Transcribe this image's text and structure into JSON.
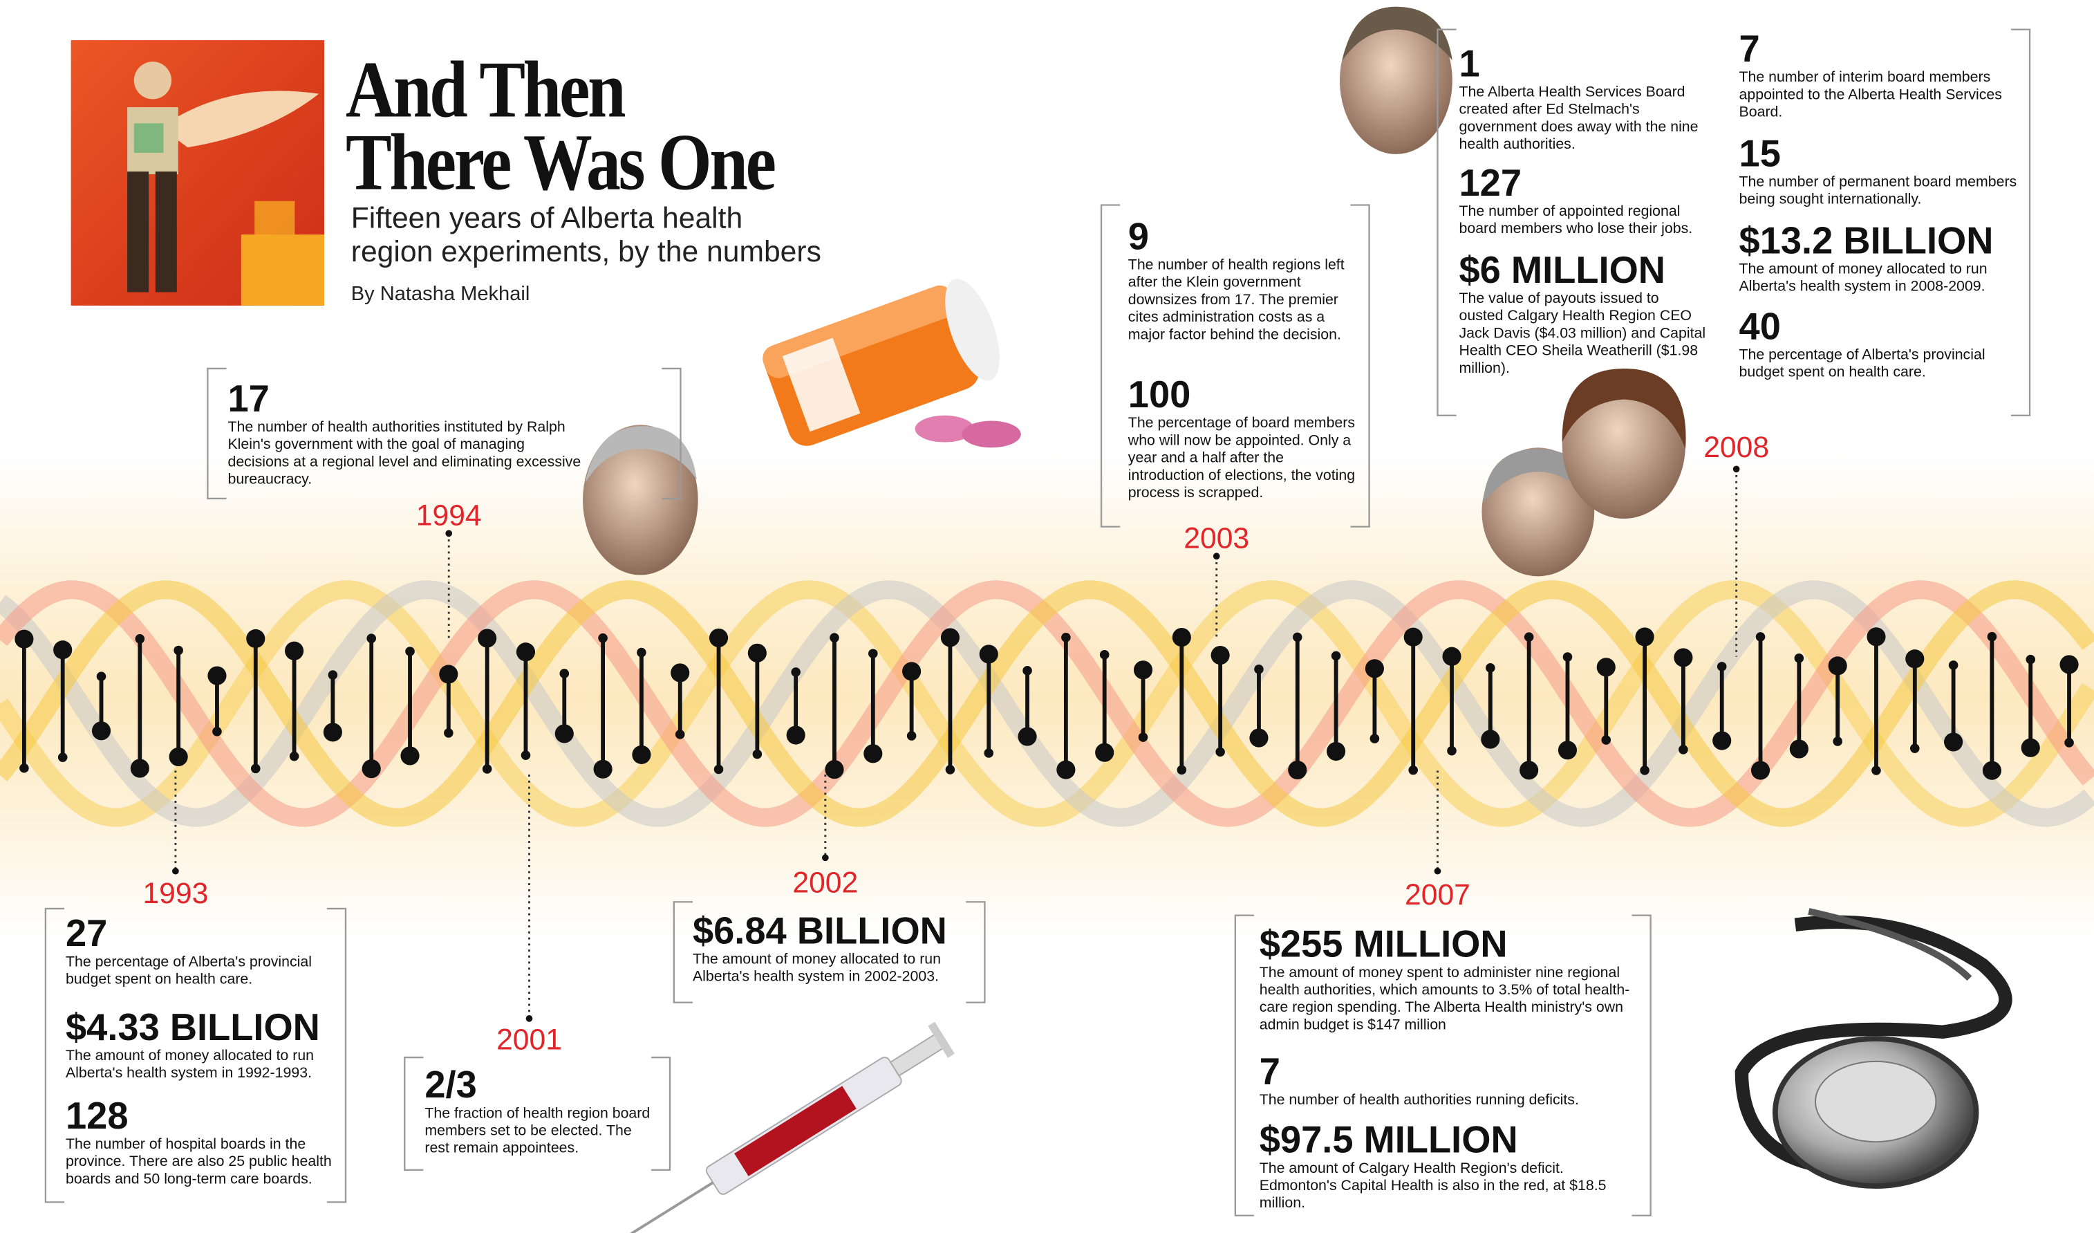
{
  "header": {
    "title_line1": "And Then",
    "title_line2": "There Was One",
    "subtitle_line1": "Fifteen years of Alberta health",
    "subtitle_line2": "region experiments, by the numbers",
    "byline": "By Natasha Mekhail"
  },
  "events": [
    {
      "year": "1993",
      "facts": [
        {
          "figure": "27",
          "text": "The percentage of Alberta's provincial budget spent on health care."
        },
        {
          "figure": "$4.33 BILLION",
          "text": "The amount of money allocated to run Alberta's health system in 1992-1993."
        },
        {
          "figure": "128",
          "text": "The number of hospital boards in the province. There are also 25 public health boards and 50 long-term care boards."
        }
      ]
    },
    {
      "year": "1994",
      "facts": [
        {
          "figure": "17",
          "text": "The number of health authorities instituted by Ralph Klein's government with the goal of managing decisions at a regional level and eliminating excessive bureaucracy."
        }
      ]
    },
    {
      "year": "2001",
      "facts": [
        {
          "figure": "2/3",
          "text": "The fraction of health region board members set to be elected. The rest remain appointees."
        }
      ]
    },
    {
      "year": "2002",
      "facts": [
        {
          "figure": "$6.84 BILLION",
          "text": "The amount of money allocated to run Alberta's health system in 2002-2003."
        }
      ]
    },
    {
      "year": "2003",
      "facts": [
        {
          "figure": "9",
          "text": "The number of health regions left after the Klein government downsizes from 17. The premier cites administration costs as a major factor behind the decision."
        },
        {
          "figure": "100",
          "text": "The percentage of board members who will now be appointed. Only a year and a half after the introduction of elections, the voting process is scrapped."
        }
      ]
    },
    {
      "year": "2007",
      "facts": [
        {
          "figure": "$255 MILLION",
          "text": "The amount of money spent to administer nine regional health authorities, which amounts to 3.5% of total health-care region spending. The Alberta Health ministry's own admin budget is $147 million"
        },
        {
          "figure": "7",
          "text": "The number of health authorities running deficits."
        },
        {
          "figure": "$97.5 MILLION",
          "text": "The amount of Calgary Health Region's deficit. Edmonton's Capital Health is also in the red, at $18.5 million."
        }
      ]
    },
    {
      "year": "2008",
      "facts": [
        {
          "figure": "1",
          "text": "The Alberta Health Services Board created after Ed Stelmach's government does away with the nine health authorities."
        },
        {
          "figure": "127",
          "text": "The number of appointed regional board members who lose their jobs."
        },
        {
          "figure": "$6 MILLION",
          "text": "The value of payouts issued to ousted Calgary Health Region CEO Jack Davis ($4.03 million) and Capital Health CEO Sheila Weatherill ($1.98 million)."
        },
        {
          "figure": "7",
          "text": "The number of interim board members appointed to the Alberta Health Services Board."
        },
        {
          "figure": "15",
          "text": "The number of permanent board members being sought internationally."
        },
        {
          "figure": "$13.2 BILLION",
          "text": "The amount of money allocated to run Alberta's health system in 2008-2009."
        },
        {
          "figure": "40",
          "text": "The percentage of Alberta's provincial budget spent on health care."
        }
      ]
    }
  ]
}
